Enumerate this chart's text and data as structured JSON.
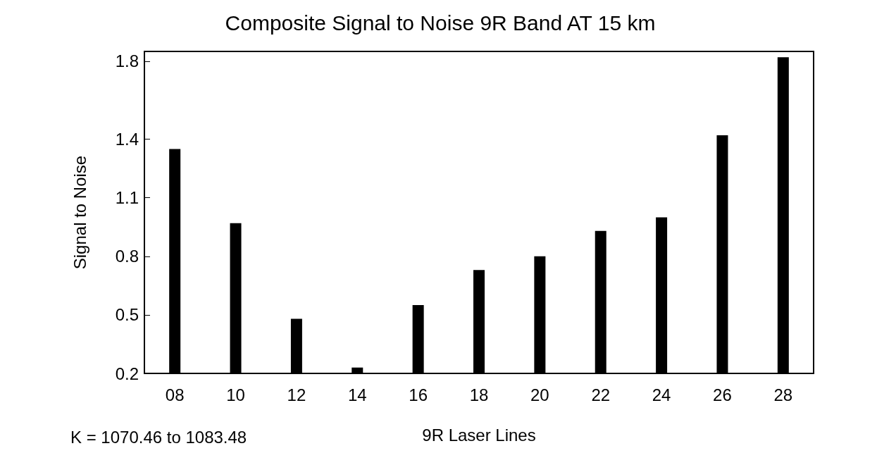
{
  "chart_data": {
    "type": "bar",
    "title": "Composite Signal to Noise 9R Band AT 15 km",
    "xlabel": "9R Laser Lines",
    "ylabel": "Signal to Noise",
    "annotations": [
      "K = 1070.46 to 1083.48"
    ],
    "categories": [
      "08",
      "10",
      "12",
      "14",
      "16",
      "18",
      "20",
      "22",
      "24",
      "26",
      "28"
    ],
    "values": [
      1.35,
      0.97,
      0.48,
      0.23,
      0.55,
      0.73,
      0.8,
      0.93,
      1.0,
      1.42,
      1.82
    ],
    "color": "#000000",
    "ylim": [
      0.2,
      1.85
    ],
    "yticks": [
      0.2,
      0.5,
      0.8,
      1.1,
      1.4,
      1.8
    ],
    "grid": false
  }
}
